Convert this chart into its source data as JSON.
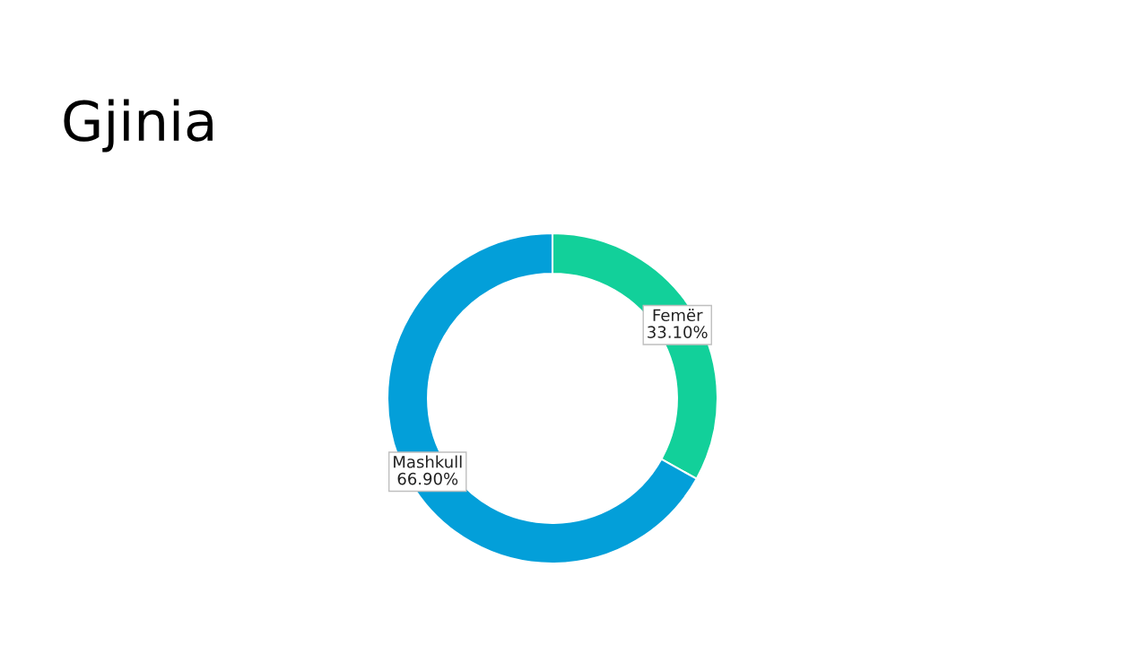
{
  "chart_data": {
    "type": "donut",
    "title": "Gjinia",
    "categories": [
      "Femër",
      "Mashkull"
    ],
    "values": [
      33.1,
      66.9
    ],
    "colors": [
      "#12d09a",
      "#039fd9"
    ],
    "value_labels": [
      "33.10%",
      "66.90%"
    ],
    "legend": false
  }
}
